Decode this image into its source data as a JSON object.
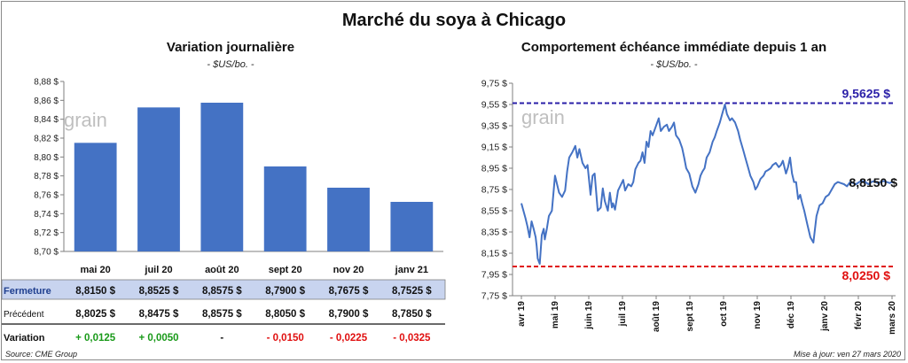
{
  "title": "Marché du soya à Chicago",
  "watermark": "grain",
  "left_chart": {
    "title": "Variation journalière",
    "subtitle": "- $US/bo. -"
  },
  "right_chart": {
    "title": "Comportement échéance immédiate depuis 1 an",
    "subtitle": "- $US/bo. -"
  },
  "table": {
    "rows": [
      {
        "label": "Fermeture",
        "values": [
          "8,8150 $",
          "8,8525 $",
          "8,8575 $",
          "8,7900 $",
          "8,7675 $",
          "8,7525 $"
        ]
      },
      {
        "label": "Précédent",
        "values": [
          "8,8025 $",
          "8,8475 $",
          "8,8575 $",
          "8,8050 $",
          "8,7900 $",
          "8,7850 $"
        ]
      },
      {
        "label": "Variation",
        "values": [
          "+ 0,0125",
          "+ 0,0050",
          "-",
          "- 0,0150",
          "- 0,0225",
          "- 0,0325"
        ]
      }
    ],
    "colors": {
      "highlight_bg": "#c8d4ef",
      "label_blue": "#1f3f8f",
      "positive": "#1a9a1a",
      "negative": "#e01010"
    }
  },
  "footer": {
    "source": "Source: CME Group",
    "updated": "Mise à jour: ven 27 mars 2020"
  },
  "chart_data": [
    {
      "type": "bar",
      "categories": [
        "mai 20",
        "juil 20",
        "août 20",
        "sept 20",
        "nov 20",
        "janv 21"
      ],
      "values": [
        8.815,
        8.8525,
        8.8575,
        8.79,
        8.7675,
        8.7525
      ],
      "ylim": [
        8.7,
        8.88
      ],
      "yticks": [
        "8,70 $",
        "8,72 $",
        "8,74 $",
        "8,76 $",
        "8,78 $",
        "8,80 $",
        "8,82 $",
        "8,84 $",
        "8,86 $",
        "8,88 $"
      ],
      "ytick_values": [
        8.7,
        8.72,
        8.74,
        8.76,
        8.78,
        8.8,
        8.82,
        8.84,
        8.86,
        8.88
      ],
      "color": "#4472c4",
      "grid": false
    },
    {
      "type": "line",
      "ylim": [
        7.75,
        9.75
      ],
      "yticks": [
        "7,75 $",
        "7,95 $",
        "8,15 $",
        "8,35 $",
        "8,55 $",
        "8,75 $",
        "8,95 $",
        "9,15 $",
        "9,35 $",
        "9,55 $",
        "9,75 $"
      ],
      "ytick_values": [
        7.75,
        7.95,
        8.15,
        8.35,
        8.55,
        8.75,
        8.95,
        9.15,
        9.35,
        9.55,
        9.75
      ],
      "xticks": [
        "avr 19",
        "mai 19",
        "juin 19",
        "juil 19",
        "août 19",
        "sept 19",
        "oct 19",
        "nov 19",
        "déc 19",
        "janv 20",
        "févr 20",
        "mars 20"
      ],
      "series": [
        {
          "color": "#4472c4",
          "x": [
            0,
            2,
            4,
            6,
            8,
            10,
            12,
            14,
            15,
            16,
            18,
            20,
            22,
            23,
            25,
            27,
            30,
            33,
            35,
            37,
            40,
            43,
            45,
            47,
            50,
            53,
            55,
            57,
            60,
            63,
            65,
            68,
            70,
            72,
            75,
            78,
            80,
            82,
            85,
            87,
            89,
            90,
            92,
            95,
            98,
            100,
            102,
            105,
            108,
            110,
            112,
            115,
            117,
            119,
            121,
            123,
            125,
            127,
            129,
            132,
            135,
            137,
            140,
            143,
            145,
            148,
            150,
            152,
            155,
            158,
            160,
            162,
            165,
            168,
            171,
            174,
            176,
            178,
            180,
            182,
            185,
            188,
            190,
            192,
            195,
            197,
            200,
            202,
            205,
            207,
            210,
            213,
            215,
            218,
            220,
            223,
            225,
            228,
            230,
            232,
            235,
            238,
            240,
            242,
            245,
            247,
            250,
            253,
            255,
            257,
            260,
            262,
            264,
            266,
            268,
            270,
            272,
            274,
            276,
            278,
            281,
            284,
            287,
            290,
            293,
            296,
            299,
            302,
            305,
            308,
            311,
            314,
            317,
            320,
            323,
            326,
            329,
            332,
            335,
            338,
            341,
            344,
            347,
            350,
            353,
            356,
            359,
            362,
            364,
            366
          ],
          "y": [
            8.62,
            8.55,
            8.48,
            8.4,
            8.3,
            8.45,
            8.38,
            8.3,
            8.22,
            8.1,
            8.05,
            8.32,
            8.38,
            8.28,
            8.38,
            8.5,
            8.55,
            8.88,
            8.8,
            8.72,
            8.68,
            8.74,
            8.92,
            9.05,
            9.1,
            9.16,
            9.05,
            9.13,
            9.0,
            8.95,
            8.98,
            8.7,
            8.88,
            8.9,
            8.55,
            8.58,
            8.76,
            8.64,
            8.55,
            8.72,
            8.58,
            8.62,
            8.56,
            8.74,
            8.8,
            8.84,
            8.74,
            8.8,
            8.78,
            8.82,
            8.94,
            9.0,
            9.02,
            9.1,
            9.0,
            9.2,
            9.15,
            9.3,
            9.26,
            9.34,
            9.42,
            9.3,
            9.34,
            9.36,
            9.3,
            9.34,
            9.38,
            9.26,
            9.22,
            9.14,
            9.05,
            8.95,
            8.9,
            8.78,
            8.72,
            8.8,
            8.88,
            8.92,
            8.95,
            9.05,
            9.1,
            9.2,
            9.24,
            9.3,
            9.38,
            9.45,
            9.55,
            9.46,
            9.4,
            9.42,
            9.38,
            9.3,
            9.22,
            9.12,
            9.05,
            8.95,
            8.88,
            8.82,
            8.75,
            8.78,
            8.85,
            8.88,
            8.92,
            8.93,
            8.95,
            8.98,
            9.0,
            8.96,
            8.98,
            9.02,
            8.9,
            8.96,
            9.05,
            8.9,
            8.82,
            8.82,
            8.66,
            8.7,
            8.62,
            8.55,
            8.42,
            8.3,
            8.25,
            8.5,
            8.6,
            8.62,
            8.68,
            8.7,
            8.75,
            8.8,
            8.82,
            8.81,
            8.8,
            8.78,
            8.82,
            8.81,
            8.8,
            8.82,
            8.83,
            8.82,
            8.8,
            8.82,
            8.83,
            8.81,
            8.82,
            8.83,
            8.82,
            8.81,
            8.82,
            8.815
          ]
        }
      ],
      "ref_lines": [
        {
          "value": 9.5625,
          "label": "9,5625 $",
          "color": "#2a1fa8"
        },
        {
          "value": 8.025,
          "label": "8,0250 $",
          "color": "#e01010"
        }
      ],
      "last_label": "8,8150 $",
      "grid": false
    }
  ]
}
